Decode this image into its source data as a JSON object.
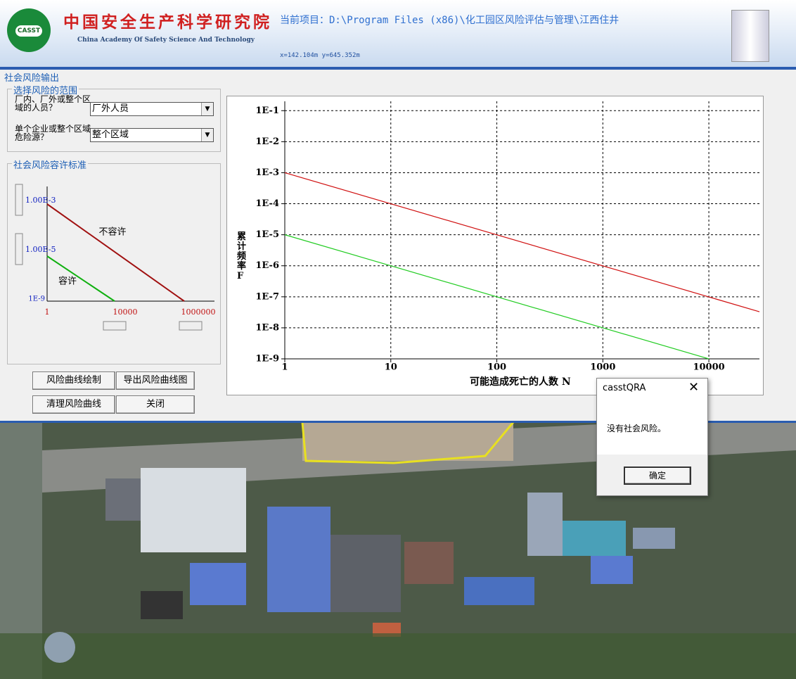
{
  "header": {
    "logo": "CASST",
    "org_cn": "中国安全生产科学研究院",
    "org_en": "China Academy Of Safety Science And Technology",
    "project": "当前项目：D:\\Program Files (x86)\\化工园区风险评估与管理\\江西住井",
    "coords": "x=142.104m  y=645.352m"
  },
  "panel": {
    "title": "社会风险输出",
    "scope_group": "选择风险的范围",
    "scope_label1": "厂内、厂外或整个区域的人员？",
    "scope_value1": "厂外人员",
    "scope_label2": "单个企业或整个区域危险源？",
    "scope_value2": "整个区域",
    "criteria_group": "社会风险容许标准",
    "criteria": {
      "upper": "1.00E-3",
      "lower": "1.00E-5",
      "bottom": "1E-9",
      "x_start": "1",
      "x_mid": "10000",
      "x_end": "1000000",
      "unacceptable": "不容许",
      "acceptable": "容许"
    },
    "buttons": [
      "风险曲线绘制",
      "导出风险曲线图",
      "清理风险曲线",
      "关闭"
    ]
  },
  "chart_data": {
    "type": "line",
    "xlabel": "可能造成死亡的人数 N",
    "ylabel": "累计频率 F",
    "log_x": true,
    "log_y": true,
    "grid": true,
    "xlim": [
      1,
      30000
    ],
    "xticks": [
      1,
      10,
      100,
      1000,
      10000
    ],
    "ylim": [
      1e-09,
      0.2
    ],
    "yticks": [
      {
        "value": 1e-09,
        "label": "1E-9"
      },
      {
        "value": 1e-08,
        "label": "1E-8"
      },
      {
        "value": 1e-07,
        "label": "1E-7"
      },
      {
        "value": 1e-06,
        "label": "1E-6"
      },
      {
        "value": 1e-05,
        "label": "1E-5"
      },
      {
        "value": 0.0001,
        "label": "1E-4"
      },
      {
        "value": 0.001,
        "label": "1E-3"
      },
      {
        "value": 0.01,
        "label": "1E-2"
      },
      {
        "value": 0.1,
        "label": "1E-1"
      }
    ],
    "series": [
      {
        "color": "#d01010",
        "x": [
          1,
          30000
        ],
        "values": [
          0.001,
          3.3e-08
        ]
      },
      {
        "color": "#22cc22",
        "x": [
          1,
          10000
        ],
        "values": [
          1e-05,
          1e-09
        ]
      }
    ]
  },
  "dialog": {
    "title": "casstQRA",
    "message": "没有社会风险。",
    "button": "确定"
  }
}
